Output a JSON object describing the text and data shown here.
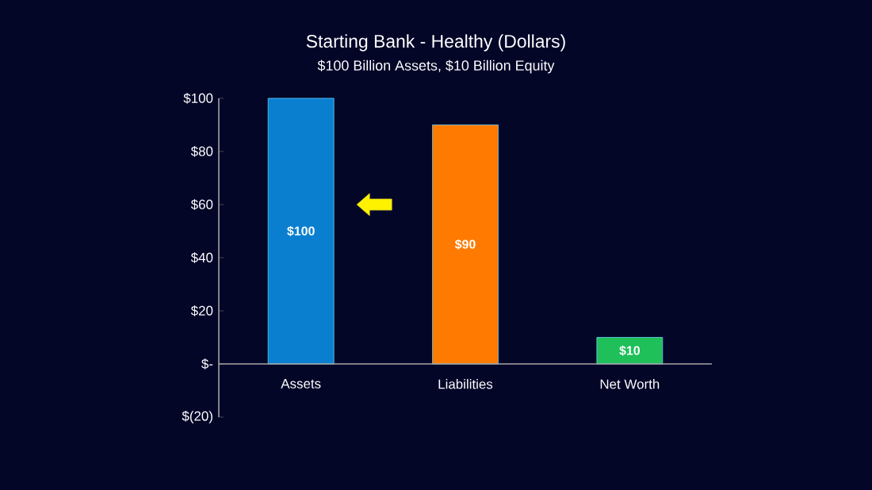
{
  "chart_data": {
    "type": "bar",
    "title": "Starting Bank - Healthy (Dollars)",
    "subtitle": "$100 Billion Assets, $10 Billion Equity",
    "categories": [
      "Assets",
      "Liabilities",
      "Net Worth"
    ],
    "values": [
      100,
      90,
      10
    ],
    "colors": [
      "#0a7fd0",
      "#ff7a00",
      "#1fbf5a"
    ],
    "value_labels": [
      "$100",
      "$90",
      "$10"
    ],
    "ylim": [
      -20,
      100
    ],
    "yticks": [
      {
        "value": -20,
        "label": "$(20)"
      },
      {
        "value": 0,
        "label": "$-"
      },
      {
        "value": 20,
        "label": "$20"
      },
      {
        "value": 40,
        "label": "$40"
      },
      {
        "value": 60,
        "label": "$60"
      },
      {
        "value": 80,
        "label": "$80"
      },
      {
        "value": 100,
        "label": "$100"
      }
    ],
    "grid": false
  }
}
